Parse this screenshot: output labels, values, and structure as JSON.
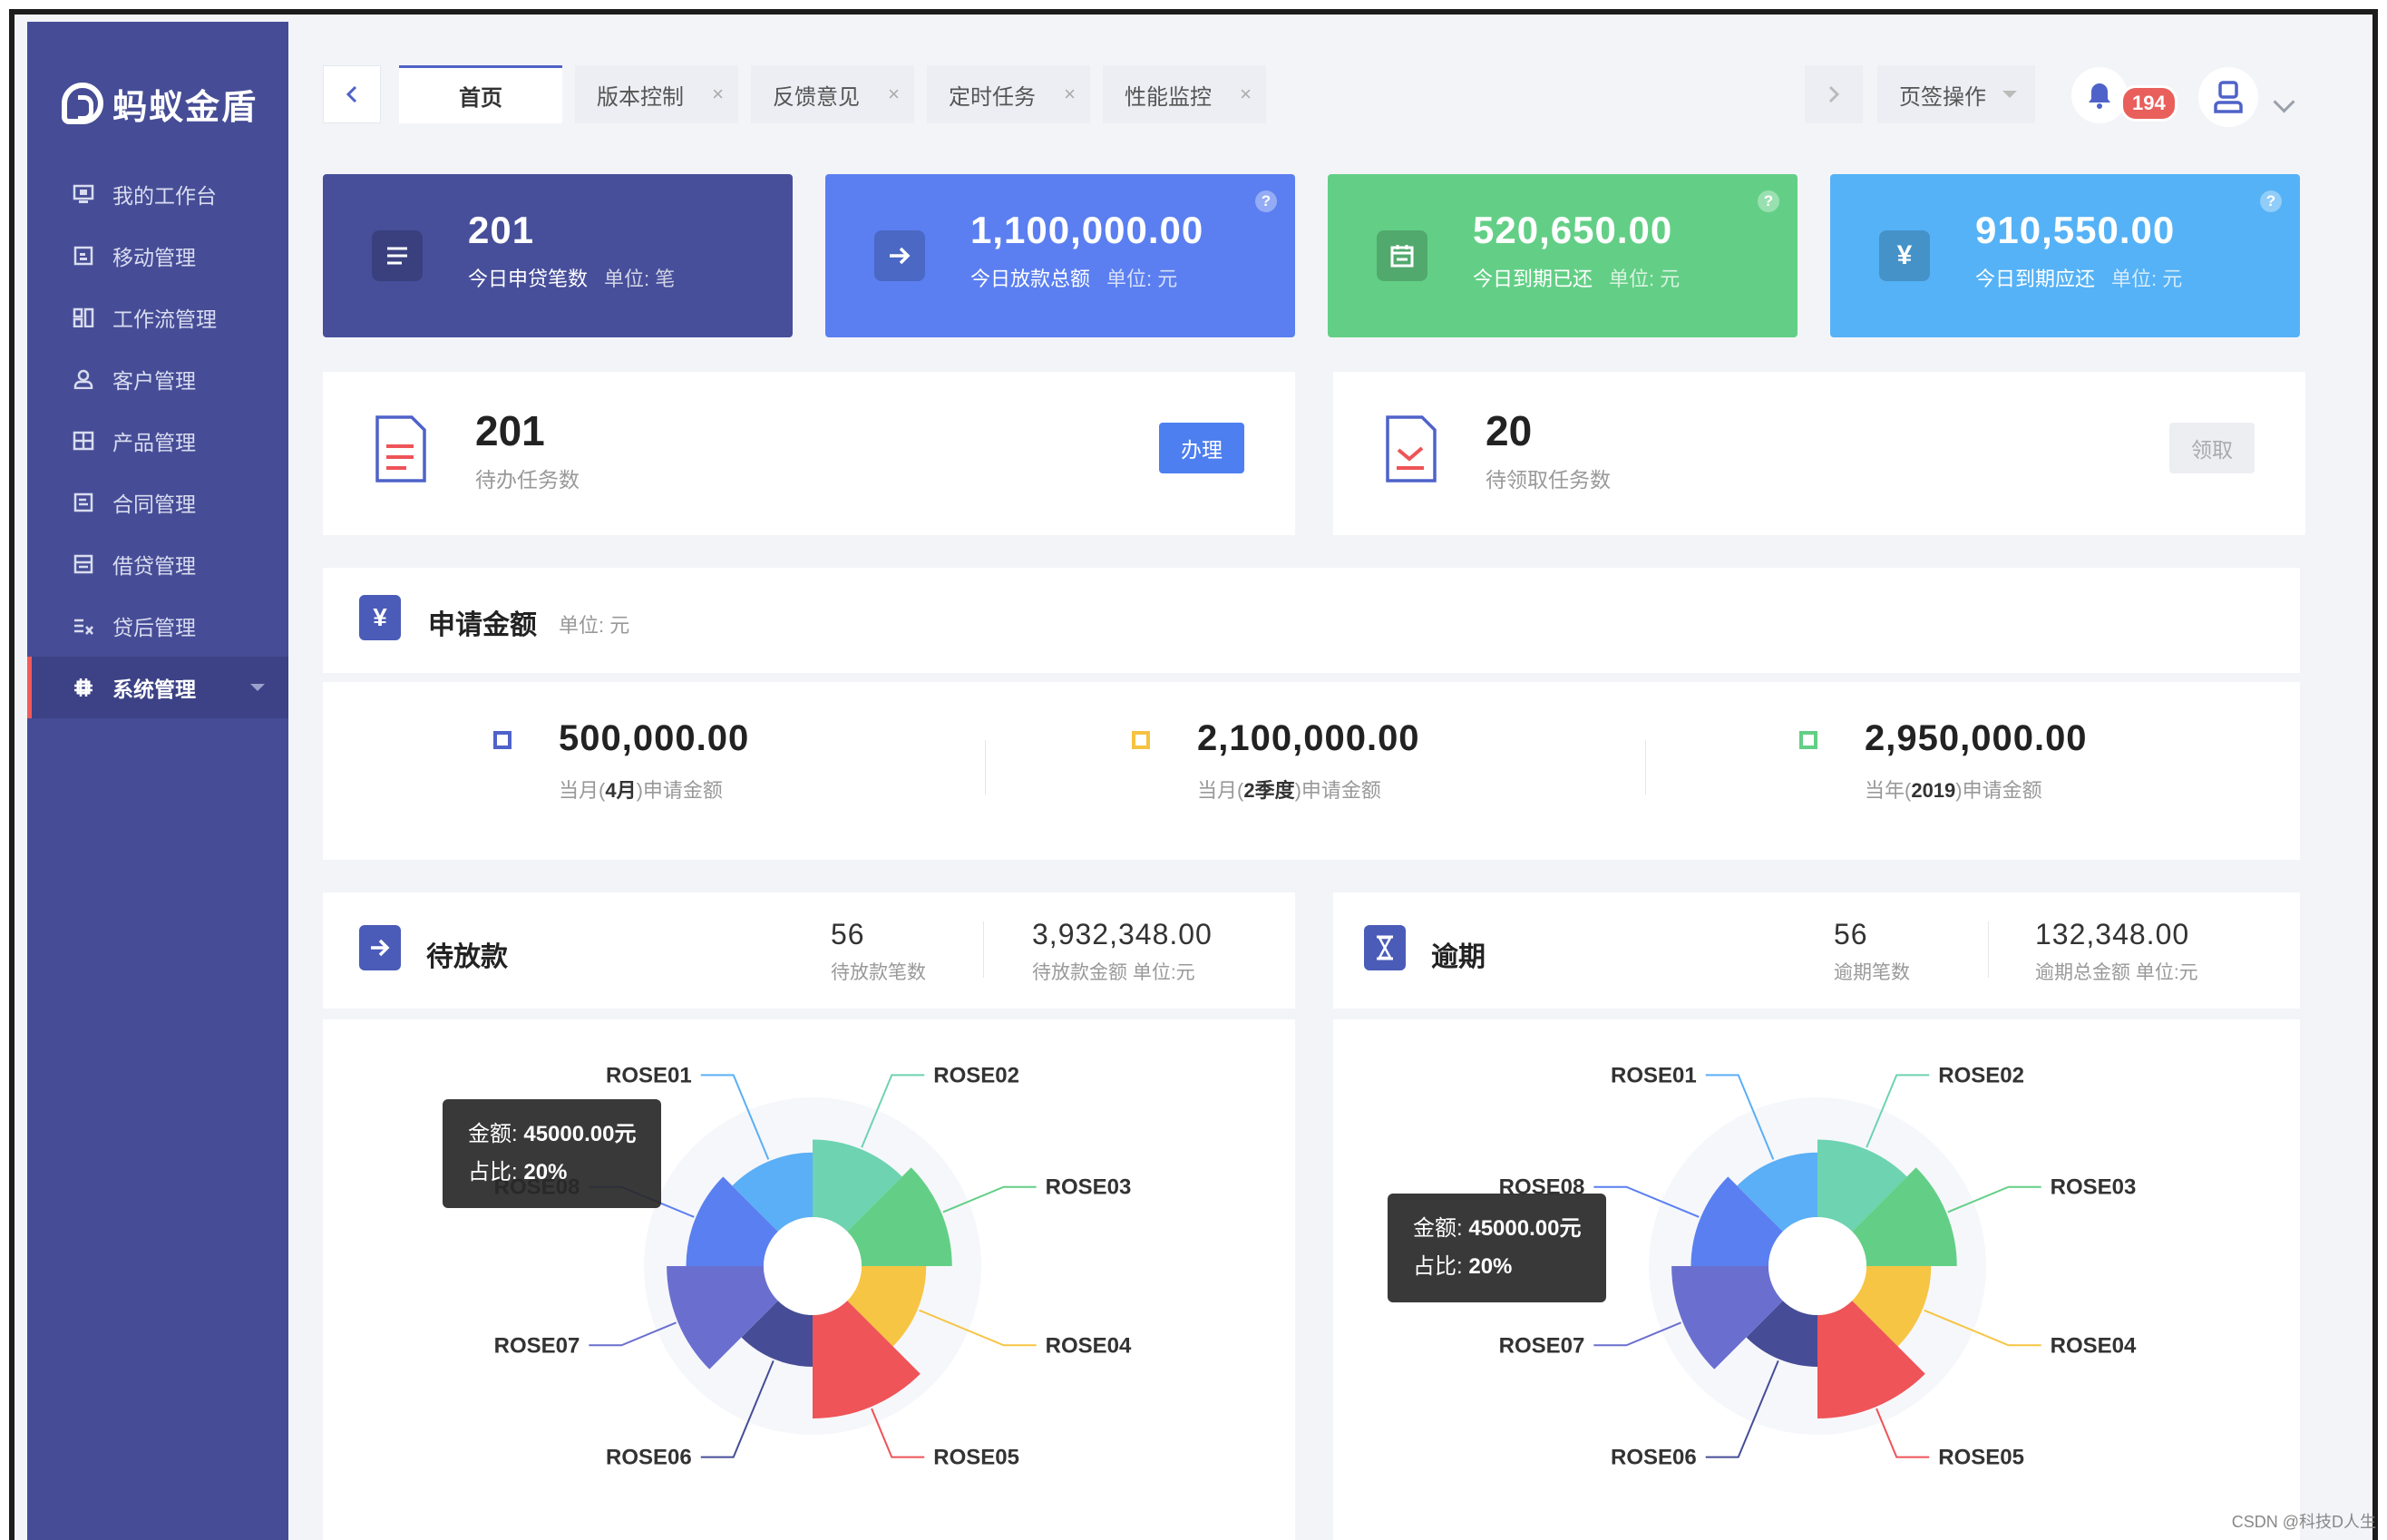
{
  "app": {
    "logo_text": "蚂蚁金盾"
  },
  "sidebar": {
    "items": [
      {
        "label": "我的工作台",
        "icon": "monitor-icon"
      },
      {
        "label": "移动管理",
        "icon": "mobile-icon"
      },
      {
        "label": "工作流管理",
        "icon": "workflow-icon"
      },
      {
        "label": "客户管理",
        "icon": "user-icon"
      },
      {
        "label": "产品管理",
        "icon": "grid-icon"
      },
      {
        "label": "合同管理",
        "icon": "contract-icon"
      },
      {
        "label": "借贷管理",
        "icon": "loan-icon"
      },
      {
        "label": "贷后管理",
        "icon": "post-loan-icon"
      },
      {
        "label": "系统管理",
        "icon": "settings-icon",
        "active": true
      }
    ]
  },
  "tabs": {
    "items": [
      {
        "label": "首页",
        "active": true
      },
      {
        "label": "版本控制",
        "close": "×"
      },
      {
        "label": "反馈意见",
        "close": "×"
      },
      {
        "label": "定时任务",
        "close": "×"
      },
      {
        "label": "性能监控",
        "close": "×"
      }
    ],
    "page_ops_label": "页签操作",
    "notification_count": "194"
  },
  "stats": [
    {
      "value": "201",
      "label": "今日申贷笔数",
      "unit": "单位: 笔",
      "color": "#474f9a",
      "icon": "list-icon"
    },
    {
      "value": "1,100,000.00",
      "label": "今日放款总额",
      "unit": "单位: 元",
      "color": "#5b7ff0",
      "icon": "arrow-right-icon"
    },
    {
      "value": "520,650.00",
      "label": "今日到期已还",
      "unit": "单位: 元",
      "color": "#63cf86",
      "icon": "calendar-icon"
    },
    {
      "value": "910,550.00",
      "label": "今日到期应还",
      "unit": "单位: 元",
      "color": "#55b2f6",
      "icon": "yen-icon"
    }
  ],
  "tasks": [
    {
      "value": "201",
      "label": "待办任务数",
      "button": "办理"
    },
    {
      "value": "20",
      "label": "待领取任务数",
      "button": "领取"
    }
  ],
  "apply": {
    "icon_glyph": "¥",
    "title": "申请金额",
    "unit": "单位: 元",
    "items": [
      {
        "value": "500,000.00",
        "prefix": "当月(",
        "bold": "4月",
        "suffix": ")申请金额",
        "color": "#4f62c9"
      },
      {
        "value": "2,100,000.00",
        "prefix": "当月(",
        "bold": "2季度",
        "suffix": ")申请金额",
        "color": "#f5c242"
      },
      {
        "value": "2,950,000.00",
        "prefix": "当年(",
        "bold": "2019",
        "suffix": ")申请金额",
        "color": "#63cf86"
      }
    ]
  },
  "pending": {
    "title": "待放款",
    "count_value": "56",
    "count_label": "待放款笔数",
    "amount_value": "3,932,348.00",
    "amount_label": "待放款金额 单位:元"
  },
  "overdue": {
    "title": "逾期",
    "count_value": "56",
    "count_label": "逾期笔数",
    "amount_value": "132,348.00",
    "amount_label": "逾期总金额 单位:元"
  },
  "tooltip": {
    "amount_label": "金额:",
    "amount_value": "45000.00元",
    "ratio_label": "占比:",
    "ratio_value": "20%"
  },
  "chart_data": [
    {
      "type": "pie",
      "subtype": "rose",
      "categories": [
        "ROSE01",
        "ROSE02",
        "ROSE03",
        "ROSE04",
        "ROSE05",
        "ROSE06",
        "ROSE07",
        "ROSE08"
      ],
      "values": [
        10,
        12,
        14,
        10,
        16,
        8,
        15,
        12
      ],
      "colors": [
        "#5aaff6",
        "#6dd3b1",
        "#63cf86",
        "#f7c544",
        "#ee5458",
        "#464d96",
        "#6a6fcf",
        "#5a7ff0"
      ],
      "labels": [
        "ROSE01",
        "ROSE02",
        "ROSE03",
        "ROSE04",
        "ROSE05",
        "ROSE06",
        "ROSE07",
        "ROSE08"
      ]
    },
    {
      "type": "pie",
      "subtype": "rose",
      "categories": [
        "ROSE01",
        "ROSE02",
        "ROSE03",
        "ROSE04",
        "ROSE05",
        "ROSE06",
        "ROSE07",
        "ROSE08"
      ],
      "values": [
        10,
        12,
        14,
        10,
        16,
        8,
        15,
        12
      ],
      "colors": [
        "#5aaff6",
        "#6dd3b1",
        "#63cf86",
        "#f7c544",
        "#ee5458",
        "#464d96",
        "#6a6fcf",
        "#5a7ff0"
      ],
      "labels": [
        "ROSE01",
        "ROSE02",
        "ROSE03",
        "ROSE04",
        "ROSE05",
        "ROSE06",
        "ROSE07",
        "ROSE08"
      ]
    }
  ],
  "watermark": "CSDN @科技D人生"
}
